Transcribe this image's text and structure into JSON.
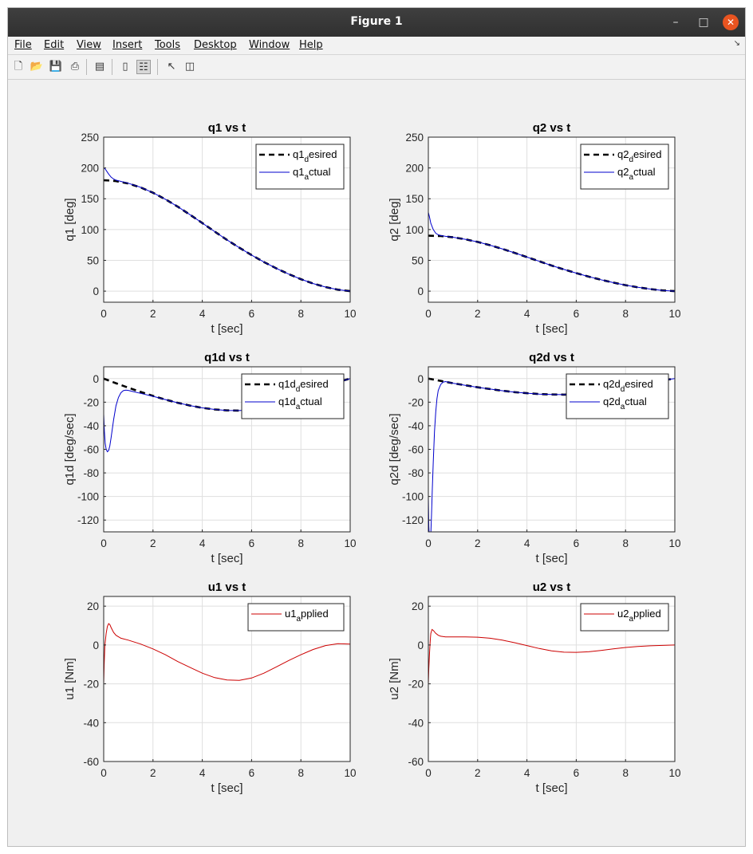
{
  "window": {
    "title": "Figure 1",
    "menu": [
      "File",
      "Edit",
      "View",
      "Insert",
      "Tools",
      "Desktop",
      "Window",
      "Help"
    ],
    "toolbar_icons": [
      "new-figure-icon",
      "open-file-icon",
      "save-icon",
      "print-icon",
      "print-preview-icon",
      "colorbar-icon",
      "legend-icon",
      "pointer-icon",
      "property-editor-icon"
    ]
  },
  "colors": {
    "desired": "#000000",
    "actual": "#0000cc",
    "applied": "#cc0000",
    "grid": "#dfdfdf"
  },
  "chart_data": [
    {
      "type": "line",
      "title": "q1 vs t",
      "xlabel": "t [sec]",
      "ylabel": "q1 [deg]",
      "xlim": [
        0,
        10
      ],
      "ylim": [
        -18,
        250
      ],
      "xticks": [
        0,
        2,
        4,
        6,
        8,
        10
      ],
      "yticks": [
        0,
        50,
        100,
        150,
        200,
        250
      ],
      "grid": true,
      "legend_position": "top-right",
      "series": [
        {
          "name": "q1_desired",
          "style": "dashed",
          "color": "#000000",
          "x": [
            0,
            0.25,
            0.5,
            1,
            1.5,
            2,
            2.5,
            3,
            3.5,
            4,
            4.5,
            5,
            5.5,
            6,
            6.5,
            7,
            7.5,
            8,
            8.5,
            9,
            9.5,
            10
          ],
          "y": [
            180,
            179.6,
            178.6,
            174.7,
            168.3,
            159.7,
            149.2,
            137.2,
            124.1,
            110.5,
            96.7,
            83.2,
            70.5,
            58.5,
            47.3,
            37.0,
            27.7,
            19.4,
            12.3,
            6.6,
            2.3,
            0
          ]
        },
        {
          "name": "q1_actual",
          "style": "solid",
          "color": "#0000cc",
          "x": [
            0,
            0.05,
            0.1,
            0.2,
            0.3,
            0.4,
            0.5,
            0.7,
            1,
            1.5,
            2,
            2.5,
            3,
            3.5,
            4,
            4.5,
            5,
            5.5,
            6,
            6.5,
            7,
            7.5,
            8,
            8.5,
            9,
            9.5,
            10
          ],
          "y": [
            200,
            199,
            196,
            190,
            185,
            182,
            180.2,
            178.2,
            175.2,
            168.5,
            159.8,
            149.2,
            137.2,
            124.1,
            110.5,
            96.7,
            83.2,
            70.5,
            58.5,
            47.3,
            37.0,
            27.7,
            19.4,
            12.3,
            6.6,
            2.3,
            0
          ]
        }
      ]
    },
    {
      "type": "line",
      "title": "q2 vs t",
      "xlabel": "t [sec]",
      "ylabel": "q2 [deg]",
      "xlim": [
        0,
        10
      ],
      "ylim": [
        -18,
        250
      ],
      "xticks": [
        0,
        2,
        4,
        6,
        8,
        10
      ],
      "yticks": [
        0,
        50,
        100,
        150,
        200,
        250
      ],
      "grid": true,
      "legend_position": "top-right",
      "series": [
        {
          "name": "q2_desired",
          "style": "dashed",
          "color": "#000000",
          "x": [
            0,
            0.5,
            1,
            1.5,
            2,
            2.5,
            3,
            3.5,
            4,
            4.5,
            5,
            5.5,
            6,
            6.5,
            7,
            7.5,
            8,
            8.5,
            9,
            9.5,
            10
          ],
          "y": [
            90,
            89.5,
            87.4,
            84.2,
            79.9,
            74.6,
            68.6,
            62.1,
            55.3,
            48.4,
            41.6,
            35.2,
            29.2,
            23.6,
            18.5,
            13.8,
            9.7,
            6.2,
            3.3,
            1.1,
            0
          ]
        },
        {
          "name": "q2_actual",
          "style": "solid",
          "color": "#0000cc",
          "x": [
            0,
            0.05,
            0.1,
            0.2,
            0.3,
            0.4,
            0.5,
            0.7,
            1,
            1.5,
            2,
            2.5,
            3,
            3.5,
            4,
            4.5,
            5,
            5.5,
            6,
            6.5,
            7,
            7.5,
            8,
            8.5,
            9,
            9.5,
            10
          ],
          "y": [
            128,
            120,
            110,
            100,
            94,
            91.5,
            90.2,
            88.9,
            87.5,
            84.2,
            79.9,
            74.6,
            68.6,
            62.1,
            55.3,
            48.4,
            41.6,
            35.2,
            29.2,
            23.6,
            18.5,
            13.8,
            9.7,
            6.2,
            3.3,
            1.1,
            0
          ]
        }
      ]
    },
    {
      "type": "line",
      "title": "q1d vs t",
      "xlabel": "t [sec]",
      "ylabel": "q1d [deg/sec]",
      "xlim": [
        0,
        10
      ],
      "ylim": [
        -130,
        10
      ],
      "xticks": [
        0,
        2,
        4,
        6,
        8,
        10
      ],
      "yticks": [
        0,
        -20,
        -40,
        -60,
        -80,
        -100,
        -120
      ],
      "grid": true,
      "legend_position": "top-right",
      "series": [
        {
          "name": "q1d_desired",
          "style": "dashed",
          "color": "#000000",
          "x": [
            0,
            0.5,
            1,
            1.5,
            2,
            2.5,
            3,
            3.5,
            4,
            4.5,
            5,
            5.5,
            6,
            6.5,
            7,
            7.5,
            8,
            8.5,
            9,
            9.5,
            10
          ],
          "y": [
            0,
            -3.9,
            -7.7,
            -11.3,
            -14.7,
            -17.8,
            -20.5,
            -22.9,
            -24.8,
            -26.2,
            -27.0,
            -27.1,
            -26.5,
            -25.0,
            -22.7,
            -19.6,
            -15.8,
            -11.5,
            -7.0,
            -2.9,
            0
          ]
        },
        {
          "name": "q1d_actual",
          "style": "solid",
          "color": "#0000cc",
          "x": [
            0,
            0.03,
            0.06,
            0.1,
            0.15,
            0.2,
            0.25,
            0.3,
            0.4,
            0.5,
            0.6,
            0.7,
            0.8,
            0.9,
            1.0,
            1.2,
            1.5,
            2,
            2.5,
            3,
            3.5,
            4,
            4.5,
            5,
            5.5,
            6,
            6.5,
            7,
            7.5,
            8,
            8.5,
            9,
            9.5,
            10
          ],
          "y": [
            -30,
            -45,
            -55,
            -60,
            -62,
            -61,
            -57,
            -50,
            -35,
            -23,
            -16,
            -12,
            -10.2,
            -9.8,
            -10.0,
            -11.0,
            -12.5,
            -15.0,
            -17.8,
            -20.5,
            -22.9,
            -24.8,
            -26.2,
            -27.0,
            -27.1,
            -26.5,
            -25.0,
            -22.7,
            -19.6,
            -15.8,
            -11.5,
            -7.0,
            -2.9,
            0
          ]
        }
      ]
    },
    {
      "type": "line",
      "title": "q2d vs t",
      "xlabel": "t [sec]",
      "ylabel": "q2d [deg/sec]",
      "xlim": [
        0,
        10
      ],
      "ylim": [
        -130,
        10
      ],
      "xticks": [
        0,
        2,
        4,
        6,
        8,
        10
      ],
      "yticks": [
        0,
        -20,
        -40,
        -60,
        -80,
        -100,
        -120
      ],
      "grid": true,
      "legend_position": "top-right",
      "series": [
        {
          "name": "q2d_desired",
          "style": "dashed",
          "color": "#000000",
          "x": [
            0,
            0.5,
            1,
            1.5,
            2,
            2.5,
            3,
            3.5,
            4,
            4.5,
            5,
            5.5,
            6,
            6.5,
            7,
            7.5,
            8,
            8.5,
            9,
            9.5,
            10
          ],
          "y": [
            0,
            -2.0,
            -3.9,
            -5.7,
            -7.4,
            -8.9,
            -10.3,
            -11.5,
            -12.4,
            -13.1,
            -13.5,
            -13.6,
            -13.3,
            -12.5,
            -11.4,
            -9.8,
            -7.9,
            -5.8,
            -3.5,
            -1.5,
            0
          ]
        },
        {
          "name": "q2d_actual",
          "style": "solid",
          "color": "#0000cc",
          "x": [
            0,
            0.02,
            0.05,
            0.08,
            0.1,
            0.13,
            0.16,
            0.2,
            0.25,
            0.3,
            0.35,
            0.4,
            0.5,
            0.6,
            0.7,
            0.8,
            1.0,
            1.5,
            2,
            2.5,
            3,
            3.5,
            4,
            4.5,
            5,
            5.5,
            6,
            6.5,
            7,
            7.5,
            8,
            8.5,
            9,
            9.5,
            10
          ],
          "y": [
            -100,
            -125,
            -140,
            -140,
            -132,
            -115,
            -95,
            -70,
            -45,
            -28,
            -17,
            -10,
            -5,
            -3,
            -2.5,
            -3.0,
            -3.9,
            -5.7,
            -7.4,
            -8.9,
            -10.3,
            -11.5,
            -12.4,
            -13.1,
            -13.5,
            -13.6,
            -13.3,
            -12.5,
            -11.4,
            -9.8,
            -7.9,
            -5.8,
            -3.5,
            -1.5,
            0
          ]
        }
      ]
    },
    {
      "type": "line",
      "title": "u1 vs t",
      "xlabel": "t [sec]",
      "ylabel": "u1 [Nm]",
      "xlim": [
        0,
        10
      ],
      "ylim": [
        -60,
        25
      ],
      "xticks": [
        0,
        2,
        4,
        6,
        8,
        10
      ],
      "yticks": [
        20,
        0,
        -20,
        -40,
        -60
      ],
      "grid": true,
      "legend_position": "top-right",
      "series": [
        {
          "name": "u1_applied",
          "style": "solid",
          "color": "#cc0000",
          "x": [
            0,
            0.02,
            0.05,
            0.1,
            0.15,
            0.2,
            0.25,
            0.3,
            0.4,
            0.5,
            0.7,
            1,
            1.5,
            2,
            2.5,
            3,
            3.5,
            4,
            4.5,
            5,
            5.5,
            6,
            6.5,
            7,
            7.5,
            8,
            8.5,
            9,
            9.5,
            10
          ],
          "y": [
            -20,
            -10,
            0,
            6,
            9.5,
            11,
            10.5,
            9,
            6.5,
            5,
            3.5,
            2.5,
            0.5,
            -2,
            -5,
            -8.5,
            -11.5,
            -14.5,
            -16.8,
            -18,
            -18.2,
            -17,
            -14.5,
            -11.3,
            -8,
            -5,
            -2.3,
            -0.3,
            0.7,
            0.5
          ]
        }
      ]
    },
    {
      "type": "line",
      "title": "u2 vs t",
      "xlabel": "t [sec]",
      "ylabel": "u2 [Nm]",
      "xlim": [
        0,
        10
      ],
      "ylim": [
        -60,
        25
      ],
      "xticks": [
        0,
        2,
        4,
        6,
        8,
        10
      ],
      "yticks": [
        20,
        0,
        -20,
        -40,
        -60
      ],
      "grid": true,
      "legend_position": "top-right",
      "series": [
        {
          "name": "u2_applied",
          "style": "solid",
          "color": "#cc0000",
          "x": [
            0,
            0.02,
            0.05,
            0.08,
            0.1,
            0.15,
            0.2,
            0.3,
            0.4,
            0.5,
            0.7,
            1,
            1.5,
            2,
            2.5,
            3,
            3.5,
            4,
            4.5,
            5,
            5.5,
            6,
            6.5,
            7,
            7.5,
            8,
            8.5,
            9,
            9.5,
            10
          ],
          "y": [
            -20,
            -12,
            -4,
            3,
            6,
            8,
            7.5,
            6,
            5,
            4.5,
            4.2,
            4.2,
            4.2,
            4,
            3.5,
            2.5,
            1.2,
            -0.3,
            -1.8,
            -3,
            -3.7,
            -3.8,
            -3.5,
            -2.8,
            -2,
            -1.3,
            -0.8,
            -0.4,
            -0.2,
            0
          ]
        }
      ]
    }
  ]
}
